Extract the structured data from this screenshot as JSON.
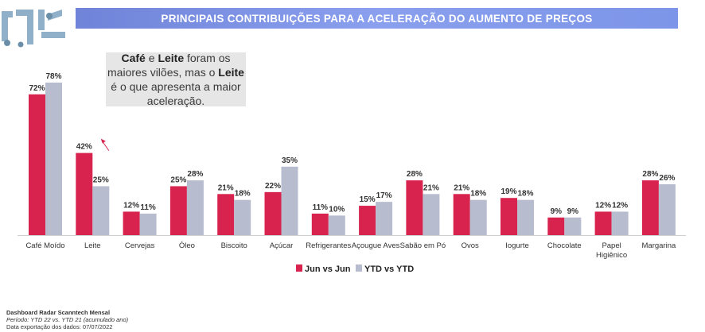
{
  "logo": {
    "text": "rjz"
  },
  "header": {
    "title": "PRINCIPAIS CONTRIBUIÇÕES PARA A ACELERAÇÃO DO AUMENTO DE PREÇOS"
  },
  "callout": {
    "part1": "Café",
    "part2": " e ",
    "part3": "Leite",
    "part4": " foram os maiores vilões, mas o ",
    "part5": "Leite",
    "part6": " é o que apresenta a maior aceleração."
  },
  "footer": {
    "line1": "Dashboard Radar Scanntech Mensal",
    "line2": "Período: YTD 22 vs. YTD 21 (acumulado ano)",
    "line3": "Data exportação dos dados: 07/07/2022"
  },
  "colors": {
    "series1": "#d8234e",
    "series2": "#b7bccf",
    "arrow": "#d8234e"
  },
  "chart_data": {
    "type": "bar",
    "categories": [
      "Café Moído",
      "Leite",
      "Cervejas",
      "Óleo",
      "Biscoito",
      "Açúcar",
      "Refrigerantes",
      "Açougue Aves",
      "Sabão em Pó",
      "Ovos",
      "Iogurte",
      "Chocolate",
      "Papel Higiênico",
      "Margarina"
    ],
    "category_lines": [
      [
        "Café Moído"
      ],
      [
        "Leite"
      ],
      [
        "Cervejas"
      ],
      [
        "Óleo"
      ],
      [
        "Biscoito"
      ],
      [
        "Açúcar"
      ],
      [
        "Refrigerantes"
      ],
      [
        "Açougue Aves"
      ],
      [
        "Sabão em Pó"
      ],
      [
        "Ovos"
      ],
      [
        "Iogurte"
      ],
      [
        "Chocolate"
      ],
      [
        "Papel",
        "Higiênico"
      ],
      [
        "Margarina"
      ]
    ],
    "series": [
      {
        "name": "Jun vs Jun",
        "values": [
          72,
          42,
          12,
          25,
          21,
          22,
          11,
          15,
          28,
          21,
          19,
          9,
          12,
          28
        ]
      },
      {
        "name": "YTD vs YTD",
        "values": [
          78,
          25,
          11,
          28,
          18,
          35,
          10,
          17,
          21,
          18,
          18,
          9,
          12,
          26
        ]
      }
    ],
    "value_suffix": "%",
    "ylim": [
      0,
      80
    ],
    "legend_position": "bottom-center",
    "grid": false
  }
}
